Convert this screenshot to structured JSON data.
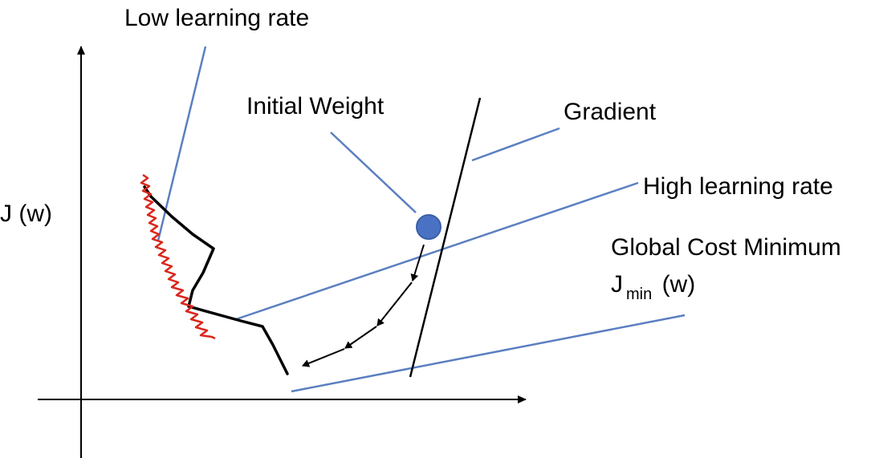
{
  "labels": {
    "low_learning_rate": "Low learning rate",
    "initial_weight": "Initial Weight",
    "gradient": "Gradient",
    "y_axis": "J (w)",
    "high_learning_rate": "High learning rate",
    "global_cost_minimum": "Global Cost Minimum",
    "jmin_base": "J",
    "jmin_subscript": "min",
    "jmin_suffix": " (w)"
  },
  "colors": {
    "axis": "#000000",
    "callout_line": "#5b7fc0",
    "high_rate_path": "#000000",
    "low_rate_path": "#d9261c",
    "gradient_line": "#000000",
    "initial_weight_fill": "#4a72c4",
    "initial_weight_stroke": "#3a5ea8",
    "descent_arrows": "#000000"
  }
}
